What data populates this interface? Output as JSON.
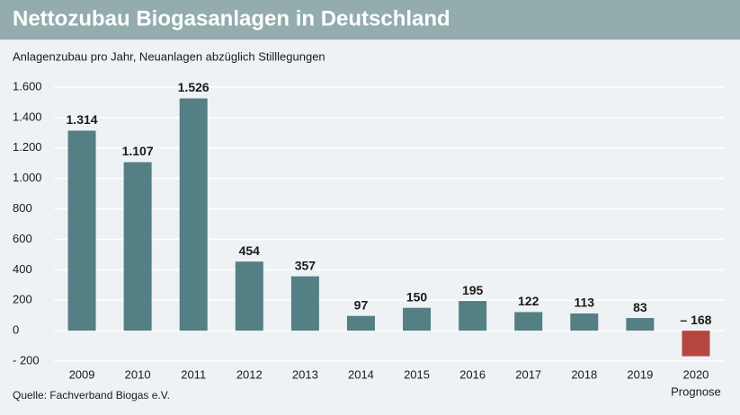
{
  "chart_data": {
    "type": "bar",
    "title": "Nettozubau Biogasanlagen in Deutschland",
    "subtitle": "Anlagenzubau pro Jahr, Neuanlagen abzüglich Stilllegungen",
    "source": "Quelle: Fachverband Biogas e.V.",
    "categories": [
      "2009",
      "2010",
      "2011",
      "2012",
      "2013",
      "2014",
      "2015",
      "2016",
      "2017",
      "2018",
      "2019",
      "2020"
    ],
    "category_note": {
      "category": 11,
      "text": "Prognose"
    },
    "values": [
      1314,
      1107,
      1526,
      454,
      357,
      97,
      150,
      195,
      122,
      113,
      83,
      -168
    ],
    "value_labels": [
      "1.314",
      "1.107",
      "1.526",
      "454",
      "357",
      "97",
      "150",
      "195",
      "122",
      "113",
      "83",
      "– 168"
    ],
    "colors": [
      "#547f84",
      "#547f84",
      "#547f84",
      "#547f84",
      "#547f84",
      "#547f84",
      "#547f84",
      "#547f84",
      "#547f84",
      "#547f84",
      "#547f84",
      "#b5473f"
    ],
    "ylim": [
      -200,
      1600
    ],
    "yticks": [
      {
        "value": -200,
        "label": "- 200"
      },
      0,
      200,
      400,
      600,
      800,
      {
        "value": 1000,
        "label": "1.000"
      },
      {
        "value": 1200,
        "label": "1.200"
      },
      {
        "value": 1400,
        "label": "1.400"
      },
      {
        "value": 1600,
        "label": "1.600"
      }
    ],
    "grid": true
  }
}
